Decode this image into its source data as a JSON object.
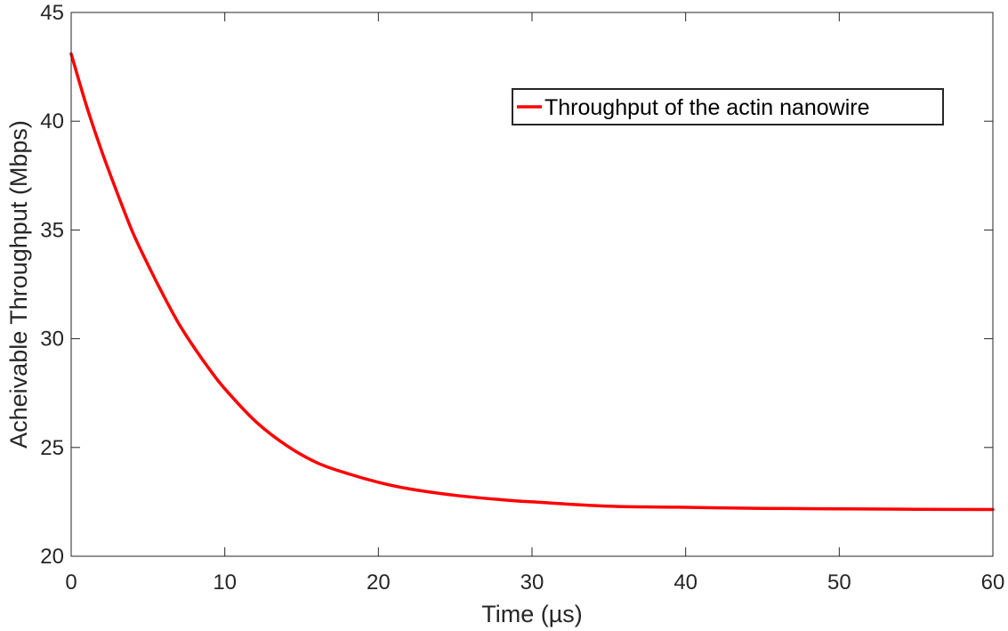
{
  "chart_data": {
    "type": "line",
    "title": "",
    "xlabel": "Time (µs)",
    "ylabel": "Acheivable Throughput (Mbps)",
    "xlim": [
      0,
      60
    ],
    "ylim": [
      20,
      45
    ],
    "xticks": [
      0,
      10,
      20,
      30,
      40,
      50,
      60
    ],
    "yticks": [
      20,
      25,
      30,
      35,
      40,
      45
    ],
    "xtick_labels": [
      "0",
      "10",
      "20",
      "30",
      "40",
      "50",
      "60"
    ],
    "ytick_labels": [
      "20",
      "25",
      "30",
      "35",
      "40",
      "45"
    ],
    "grid": false,
    "legend_position": "top-right",
    "series": [
      {
        "name": "Throughput of the actin nanowire",
        "color": "#ff0000",
        "x": [
          0,
          1,
          2,
          3,
          4,
          5,
          6,
          7,
          8,
          9,
          10,
          12,
          14,
          16,
          18,
          20,
          22,
          25,
          28,
          30,
          35,
          40,
          45,
          50,
          55,
          60
        ],
        "y": [
          43.1,
          40.7,
          38.6,
          36.7,
          34.9,
          33.4,
          32.0,
          30.7,
          29.6,
          28.6,
          27.7,
          26.2,
          25.1,
          24.3,
          23.8,
          23.4,
          23.1,
          22.8,
          22.6,
          22.5,
          22.3,
          22.25,
          22.2,
          22.18,
          22.16,
          22.15
        ]
      }
    ]
  }
}
